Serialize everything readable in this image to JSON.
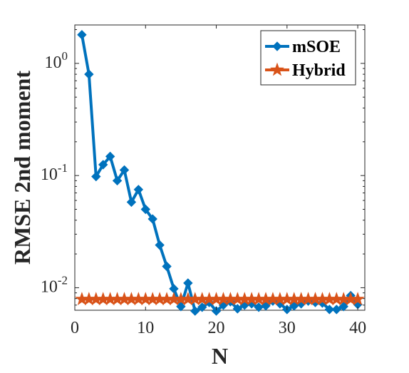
{
  "chart_data": {
    "type": "line",
    "xlabel": "N",
    "ylabel": "RMSE 2nd moment",
    "xlim": [
      0,
      41
    ],
    "ylim": [
      0.0063,
      2.2
    ],
    "yscale": "log",
    "xticks": [
      0,
      10,
      20,
      30,
      40
    ],
    "yticks": [
      {
        "value": 1,
        "base": "10",
        "exp": "0"
      },
      {
        "value": 0.1,
        "base": "10",
        "exp": "-1"
      },
      {
        "value": 0.01,
        "base": "10",
        "exp": "-2"
      }
    ],
    "grid": false,
    "legend_position": "top-right",
    "series": [
      {
        "name": "mSOE",
        "color": "#0072BD",
        "marker": "diamond",
        "x": [
          1,
          2,
          3,
          4,
          5,
          6,
          7,
          8,
          9,
          10,
          11,
          12,
          13,
          14,
          15,
          16,
          17,
          18,
          19,
          20,
          21,
          22,
          23,
          24,
          25,
          26,
          27,
          28,
          29,
          30,
          31,
          32,
          33,
          34,
          35,
          36,
          37,
          38,
          39,
          40
        ],
        "y": [
          1.8,
          0.8,
          0.098,
          0.125,
          0.148,
          0.09,
          0.112,
          0.058,
          0.075,
          0.05,
          0.041,
          0.024,
          0.0155,
          0.0098,
          0.0068,
          0.011,
          0.0062,
          0.0067,
          0.0074,
          0.0062,
          0.007,
          0.0075,
          0.0065,
          0.007,
          0.0072,
          0.0067,
          0.0069,
          0.0076,
          0.0072,
          0.0064,
          0.0069,
          0.0072,
          0.0076,
          0.0074,
          0.0073,
          0.0064,
          0.0064,
          0.0068,
          0.0085,
          0.0071
        ]
      },
      {
        "name": "Hybrid",
        "color": "#D95319",
        "marker": "star",
        "x": [
          1,
          2,
          3,
          4,
          5,
          6,
          7,
          8,
          9,
          10,
          11,
          12,
          13,
          14,
          15,
          16,
          17,
          18,
          19,
          20,
          21,
          22,
          23,
          24,
          25,
          26,
          27,
          28,
          29,
          30,
          31,
          32,
          33,
          34,
          35,
          36,
          37,
          38,
          39,
          40
        ],
        "y": [
          0.0079,
          0.0079,
          0.0079,
          0.0079,
          0.0079,
          0.0079,
          0.0079,
          0.0079,
          0.0079,
          0.0079,
          0.0079,
          0.0079,
          0.0079,
          0.0079,
          0.0079,
          0.0079,
          0.0079,
          0.0079,
          0.0079,
          0.0079,
          0.0079,
          0.0079,
          0.0079,
          0.0079,
          0.0079,
          0.0079,
          0.0079,
          0.0079,
          0.0079,
          0.0079,
          0.0079,
          0.0079,
          0.0079,
          0.0079,
          0.0079,
          0.0079,
          0.0079,
          0.0079,
          0.0079,
          0.0079
        ]
      }
    ]
  }
}
